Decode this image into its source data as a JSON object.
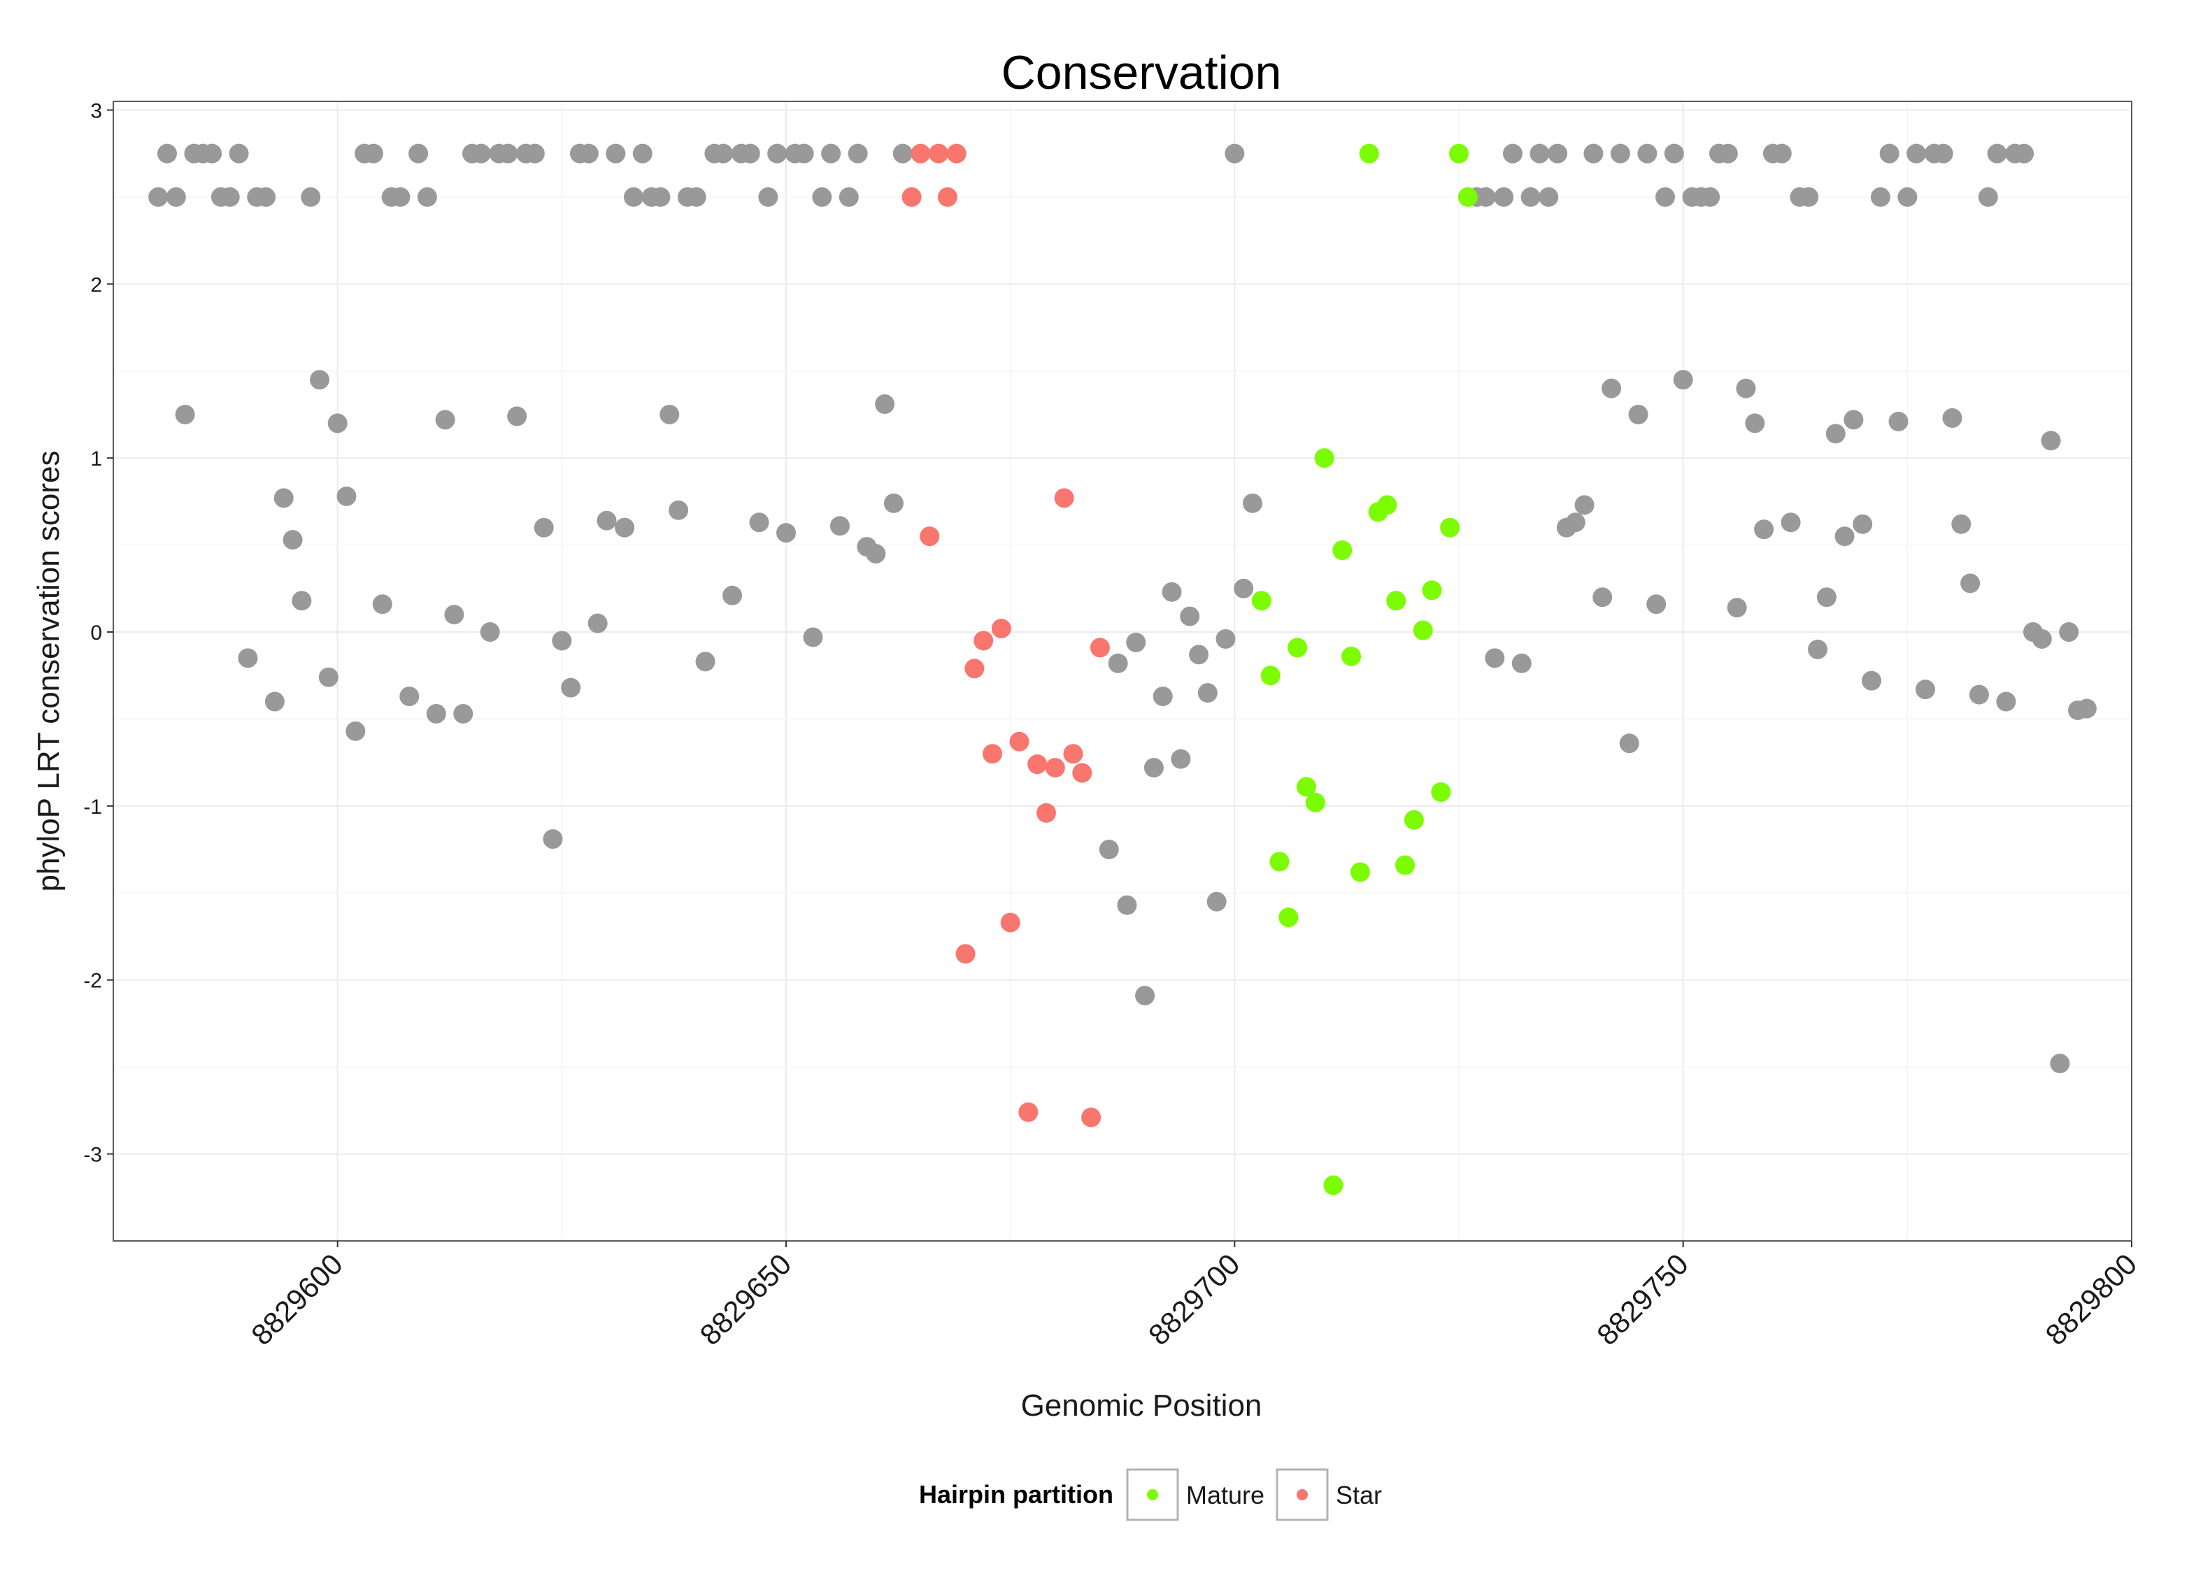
{
  "chart_data": {
    "type": "scatter",
    "title": "Conservation",
    "xlabel": "Genomic Position",
    "ylabel": "phyloP LRT conservation scores",
    "xlim": [
      8829575,
      8829800
    ],
    "ylim": [
      -3.5,
      3.05
    ],
    "xticks": [
      8829600,
      8829650,
      8829700,
      8829750,
      8829800
    ],
    "xtick_labels": [
      "8829600",
      "8829650",
      "8829700",
      "8829750",
      "8829800"
    ],
    "yticks": [
      3,
      2,
      1,
      0,
      -1,
      -2,
      -3
    ],
    "ytick_labels": [
      "3",
      "2",
      "1",
      "0",
      "-1",
      "-2",
      "-3"
    ],
    "grid": true,
    "legend": {
      "title": "Hairpin partition",
      "position": "bottom",
      "entries": [
        {
          "label": "Mature",
          "color": "#7cfc00"
        },
        {
          "label": "Star",
          "color": "#f8766d"
        }
      ]
    },
    "background_color": "#999999",
    "series": [
      {
        "name": "Background",
        "color": "#999999",
        "in_legend": false,
        "points": [
          [
            8829580,
            2.5
          ],
          [
            8829581,
            2.75
          ],
          [
            8829582,
            2.5
          ],
          [
            8829583,
            1.25
          ],
          [
            8829584,
            2.75
          ],
          [
            8829585,
            2.75
          ],
          [
            8829586,
            2.75
          ],
          [
            8829587,
            2.5
          ],
          [
            8829588,
            2.5
          ],
          [
            8829589,
            2.75
          ],
          [
            8829590,
            -0.15
          ],
          [
            8829591,
            2.5
          ],
          [
            8829592,
            2.5
          ],
          [
            8829593,
            -0.4
          ],
          [
            8829594,
            0.77
          ],
          [
            8829595,
            0.53
          ],
          [
            8829596,
            0.18
          ],
          [
            8829597,
            2.5
          ],
          [
            8829598,
            1.45
          ],
          [
            8829599,
            -0.26
          ],
          [
            8829600,
            1.2
          ],
          [
            8829601,
            0.78
          ],
          [
            8829602,
            -0.57
          ],
          [
            8829603,
            2.75
          ],
          [
            8829604,
            2.75
          ],
          [
            8829605,
            0.16
          ],
          [
            8829606,
            2.5
          ],
          [
            8829607,
            2.5
          ],
          [
            8829608,
            -0.37
          ],
          [
            8829609,
            2.75
          ],
          [
            8829610,
            2.5
          ],
          [
            8829611,
            -0.47
          ],
          [
            8829612,
            1.22
          ],
          [
            8829613,
            0.1
          ],
          [
            8829614,
            -0.47
          ],
          [
            8829615,
            2.75
          ],
          [
            8829616,
            2.75
          ],
          [
            8829617,
            0.0
          ],
          [
            8829618,
            2.75
          ],
          [
            8829619,
            2.75
          ],
          [
            8829620,
            1.24
          ],
          [
            8829621,
            2.75
          ],
          [
            8829622,
            2.75
          ],
          [
            8829623,
            0.6
          ],
          [
            8829624,
            -1.19
          ],
          [
            8829625,
            -0.05
          ],
          [
            8829626,
            -0.32
          ],
          [
            8829627,
            2.75
          ],
          [
            8829628,
            2.75
          ],
          [
            8829629,
            0.05
          ],
          [
            8829630,
            0.64
          ],
          [
            8829631,
            2.75
          ],
          [
            8829632,
            0.6
          ],
          [
            8829633,
            2.5
          ],
          [
            8829634,
            2.75
          ],
          [
            8829635,
            2.5
          ],
          [
            8829636,
            2.5
          ],
          [
            8829637,
            1.25
          ],
          [
            8829638,
            0.7
          ],
          [
            8829639,
            2.5
          ],
          [
            8829640,
            2.5
          ],
          [
            8829641,
            -0.17
          ],
          [
            8829642,
            2.75
          ],
          [
            8829643,
            2.75
          ],
          [
            8829644,
            0.21
          ],
          [
            8829645,
            2.75
          ],
          [
            8829646,
            2.75
          ],
          [
            8829647,
            0.63
          ],
          [
            8829648,
            2.5
          ],
          [
            8829649,
            2.75
          ],
          [
            8829650,
            0.57
          ],
          [
            8829651,
            2.75
          ],
          [
            8829652,
            2.75
          ],
          [
            8829653,
            -0.03
          ],
          [
            8829654,
            2.5
          ],
          [
            8829655,
            2.75
          ],
          [
            8829656,
            0.61
          ],
          [
            8829657,
            2.5
          ],
          [
            8829658,
            2.75
          ],
          [
            8829659,
            0.49
          ],
          [
            8829660,
            0.45
          ],
          [
            8829661,
            1.31
          ],
          [
            8829662,
            0.74
          ],
          [
            8829663,
            2.75
          ],
          [
            8829686,
            -1.25
          ],
          [
            8829687,
            -0.18
          ],
          [
            8829688,
            -1.57
          ],
          [
            8829689,
            -0.06
          ],
          [
            8829690,
            -2.09
          ],
          [
            8829691,
            -0.78
          ],
          [
            8829692,
            -0.37
          ],
          [
            8829693,
            0.23
          ],
          [
            8829694,
            -0.73
          ],
          [
            8829695,
            0.09
          ],
          [
            8829696,
            -0.13
          ],
          [
            8829697,
            -0.35
          ],
          [
            8829698,
            -1.55
          ],
          [
            8829699,
            -0.04
          ],
          [
            8829700,
            2.75
          ],
          [
            8829701,
            0.25
          ],
          [
            8829702,
            0.74
          ],
          [
            8829727,
            2.5
          ],
          [
            8829728,
            2.5
          ],
          [
            8829729,
            -0.15
          ],
          [
            8829730,
            2.5
          ],
          [
            8829731,
            2.75
          ],
          [
            8829732,
            -0.18
          ],
          [
            8829733,
            2.5
          ],
          [
            8829734,
            2.75
          ],
          [
            8829735,
            2.5
          ],
          [
            8829736,
            2.75
          ],
          [
            8829737,
            0.6
          ],
          [
            8829738,
            0.63
          ],
          [
            8829739,
            0.73
          ],
          [
            8829740,
            2.75
          ],
          [
            8829741,
            0.2
          ],
          [
            8829742,
            1.4
          ],
          [
            8829743,
            2.75
          ],
          [
            8829744,
            -0.64
          ],
          [
            8829745,
            1.25
          ],
          [
            8829746,
            2.75
          ],
          [
            8829747,
            0.16
          ],
          [
            8829748,
            2.5
          ],
          [
            8829749,
            2.75
          ],
          [
            8829750,
            1.45
          ],
          [
            8829751,
            2.5
          ],
          [
            8829752,
            2.5
          ],
          [
            8829753,
            2.5
          ],
          [
            8829754,
            2.75
          ],
          [
            8829755,
            2.75
          ],
          [
            8829756,
            0.14
          ],
          [
            8829757,
            1.4
          ],
          [
            8829758,
            1.2
          ],
          [
            8829759,
            0.59
          ],
          [
            8829760,
            2.75
          ],
          [
            8829761,
            2.75
          ],
          [
            8829762,
            0.63
          ],
          [
            8829763,
            2.5
          ],
          [
            8829764,
            2.5
          ],
          [
            8829765,
            -0.1
          ],
          [
            8829766,
            0.2
          ],
          [
            8829767,
            1.14
          ],
          [
            8829768,
            0.55
          ],
          [
            8829769,
            1.22
          ],
          [
            8829770,
            0.62
          ],
          [
            8829771,
            -0.28
          ],
          [
            8829772,
            2.5
          ],
          [
            8829773,
            2.75
          ],
          [
            8829774,
            1.21
          ],
          [
            8829775,
            2.5
          ],
          [
            8829776,
            2.75
          ],
          [
            8829777,
            -0.33
          ],
          [
            8829778,
            2.75
          ],
          [
            8829779,
            2.75
          ],
          [
            8829780,
            1.23
          ],
          [
            8829781,
            0.62
          ],
          [
            8829782,
            0.28
          ],
          [
            8829783,
            -0.36
          ],
          [
            8829784,
            2.5
          ],
          [
            8829785,
            2.75
          ],
          [
            8829786,
            -0.4
          ],
          [
            8829787,
            2.75
          ],
          [
            8829788,
            2.75
          ],
          [
            8829789,
            0.0
          ],
          [
            8829790,
            -0.04
          ],
          [
            8829791,
            1.1
          ],
          [
            8829792,
            -2.48
          ],
          [
            8829793,
            0.0
          ],
          [
            8829794,
            -0.45
          ],
          [
            8829795,
            -0.44
          ]
        ]
      },
      {
        "name": "Star",
        "color": "#f8766d",
        "in_legend": true,
        "points": [
          [
            8829664,
            2.5
          ],
          [
            8829665,
            2.75
          ],
          [
            8829666,
            0.55
          ],
          [
            8829667,
            2.75
          ],
          [
            8829668,
            2.5
          ],
          [
            8829669,
            2.75
          ],
          [
            8829670,
            -1.85
          ],
          [
            8829671,
            -0.21
          ],
          [
            8829672,
            -0.05
          ],
          [
            8829673,
            -0.7
          ],
          [
            8829674,
            0.02
          ],
          [
            8829675,
            -1.67
          ],
          [
            8829676,
            -0.63
          ],
          [
            8829677,
            -2.76
          ],
          [
            8829678,
            -0.76
          ],
          [
            8829679,
            -1.04
          ],
          [
            8829680,
            -0.78
          ],
          [
            8829681,
            0.77
          ],
          [
            8829682,
            -0.7
          ],
          [
            8829683,
            -0.81
          ],
          [
            8829684,
            -2.79
          ],
          [
            8829685,
            -0.09
          ]
        ]
      },
      {
        "name": "Mature",
        "color": "#7cfc00",
        "in_legend": true,
        "points": [
          [
            8829703,
            0.18
          ],
          [
            8829704,
            -0.25
          ],
          [
            8829705,
            -1.32
          ],
          [
            8829706,
            -1.64
          ],
          [
            8829707,
            -0.09
          ],
          [
            8829708,
            -0.89
          ],
          [
            8829709,
            -0.98
          ],
          [
            8829710,
            1.0
          ],
          [
            8829711,
            -3.18
          ],
          [
            8829712,
            0.47
          ],
          [
            8829713,
            -0.14
          ],
          [
            8829714,
            -1.38
          ],
          [
            8829715,
            2.75
          ],
          [
            8829716,
            0.69
          ],
          [
            8829717,
            0.73
          ],
          [
            8829718,
            0.18
          ],
          [
            8829719,
            -1.34
          ],
          [
            8829720,
            -1.08
          ],
          [
            8829721,
            0.01
          ],
          [
            8829722,
            0.24
          ],
          [
            8829723,
            -0.92
          ],
          [
            8829724,
            0.6
          ],
          [
            8829725,
            2.75
          ],
          [
            8829726,
            2.5
          ]
        ]
      }
    ]
  }
}
